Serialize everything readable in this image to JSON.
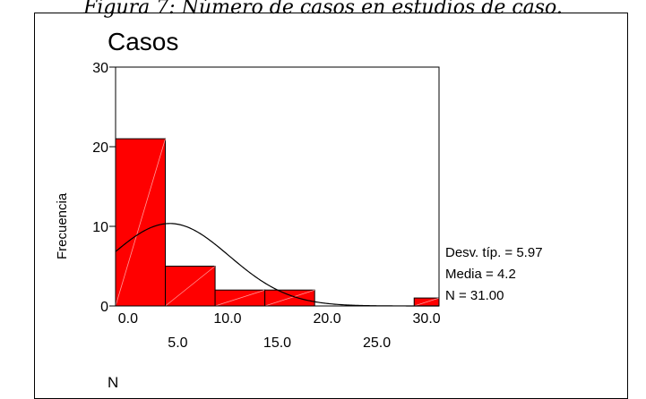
{
  "caption": "Figura 7: Número de casos en estudios de caso.",
  "chart_data": {
    "type": "histogram",
    "title": "Casos",
    "xlabel": "N",
    "ylabel": "Frecuencia",
    "ylim": [
      0,
      30
    ],
    "y_ticks": [
      0,
      10,
      20,
      30
    ],
    "xlim": [
      -1.25,
      31.25
    ],
    "x_tick_values": [
      0,
      5,
      10,
      15,
      20,
      25,
      30
    ],
    "x_tick_labels": [
      "0.0",
      "5.0",
      "10.0",
      "15.0",
      "20.0",
      "25.0",
      "30.0"
    ],
    "bins": [
      {
        "start": -1.25,
        "end": 3.75,
        "count": 21
      },
      {
        "start": 3.75,
        "end": 8.75,
        "count": 5
      },
      {
        "start": 8.75,
        "end": 13.75,
        "count": 2
      },
      {
        "start": 13.75,
        "end": 18.75,
        "count": 2
      },
      {
        "start": 18.75,
        "end": 23.75,
        "count": 0
      },
      {
        "start": 23.75,
        "end": 28.75,
        "count": 0
      },
      {
        "start": 28.75,
        "end": 33.75,
        "count": 1
      }
    ],
    "normal_curve": {
      "mean": 4.2,
      "sd": 5.97,
      "n": 31,
      "bin_width": 5
    },
    "bar_color": "#ff0000",
    "stats": [
      "Desv. típ. = 5.97",
      "Media = 4.2",
      "N = 31.00"
    ]
  }
}
